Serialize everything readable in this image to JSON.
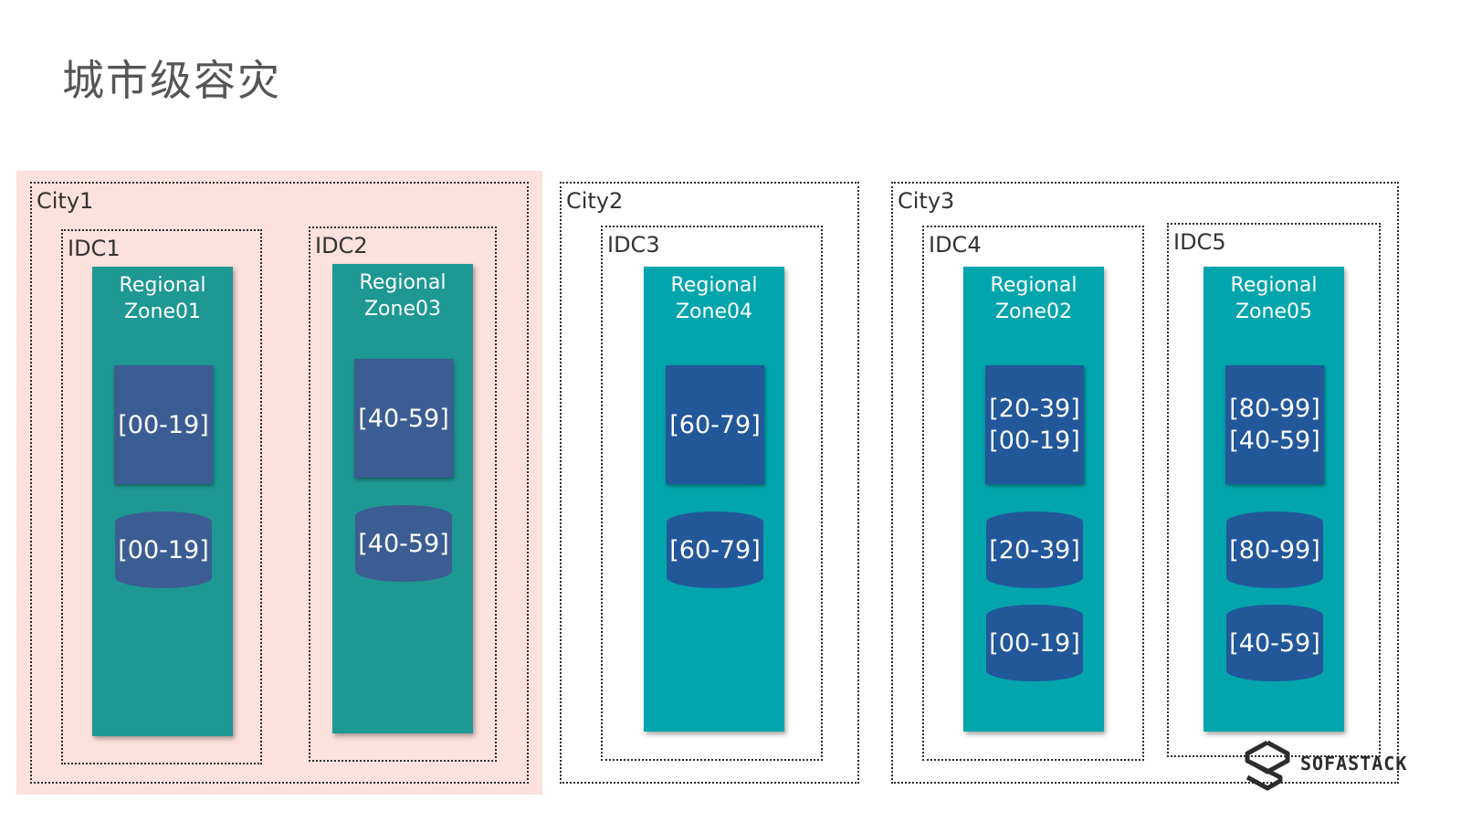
{
  "title": "城市级容灾",
  "cities": [
    {
      "label": "City1"
    },
    {
      "label": "City2"
    },
    {
      "label": "City3"
    }
  ],
  "idcs": [
    {
      "label": "IDC1"
    },
    {
      "label": "IDC2"
    },
    {
      "label": "IDC3"
    },
    {
      "label": "IDC4"
    },
    {
      "label": "IDC5"
    }
  ],
  "zones": [
    {
      "title": "Regional\nZone01",
      "shard": "[00-19]",
      "dbs": [
        "[00-19]"
      ]
    },
    {
      "title": "Regional\nZone03",
      "shard": "[40-59]",
      "dbs": [
        "[40-59]"
      ]
    },
    {
      "title": "Regional\nZone04",
      "shard": "[60-79]",
      "dbs": [
        "[60-79]"
      ]
    },
    {
      "title": "Regional\nZone02",
      "shard": "[20-39]\n[00-19]",
      "dbs": [
        "[20-39]",
        "[00-19]"
      ]
    },
    {
      "title": "Regional\nZone05",
      "shard": "[80-99]\n[40-59]",
      "dbs": [
        "[80-99]",
        "[40-59]"
      ]
    }
  ],
  "colors": {
    "highlight_city_bg": "#fce1dc",
    "zone_muted": "#1e9893",
    "zone_bright": "#03a5ad",
    "shard_muted": "#3c5d93",
    "shard_bright": "#22579a",
    "db_muted": "#3c5d93",
    "db_bright": "#22579a"
  },
  "logo": {
    "text": "SOFASTACK",
    "icon": "sofastack-logo-icon"
  }
}
